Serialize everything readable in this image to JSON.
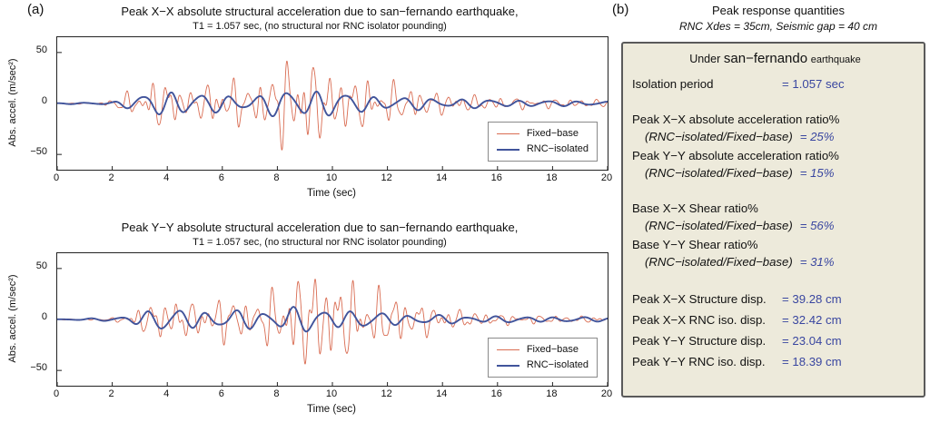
{
  "figure": {
    "panel_a_label": "(a)",
    "panel_b_label": "(b)"
  },
  "chart_data": [
    {
      "type": "line",
      "title": "Peak X−X absolute structural acceleration due to san−fernando earthquake,",
      "subtitle": "T1 = 1.057 sec, (no structural nor RNC isolator pounding)",
      "xlabel": "Time (sec)",
      "ylabel": "Abs. accel. (m/sec²)",
      "xlim": [
        0,
        20
      ],
      "ylim": [
        -65,
        65
      ],
      "xticks": [
        0,
        2,
        4,
        6,
        8,
        10,
        12,
        14,
        16,
        18,
        20
      ],
      "yticks": [
        -50,
        0,
        50
      ],
      "grid": false,
      "legend": [
        "Fixed−base",
        "RNC−isolated"
      ],
      "legend_position": "lower right",
      "series": [
        {
          "name": "Fixed−base",
          "color": "#d96c52",
          "width": 0.9,
          "norm": 1.08,
          "components": [
            {
              "f": 2.05,
              "w": 0.5,
              "p": 0.7
            },
            {
              "f": 3.1,
              "w": 0.3,
              "p": 2.3
            },
            {
              "f": 1.35,
              "w": 0.28,
              "p": 4.9
            },
            {
              "f": 4.35,
              "w": 0.15,
              "p": 1.1
            }
          ],
          "envelope": [
            [
              0,
              0.4
            ],
            [
              1.6,
              0.8
            ],
            [
              2.2,
              8
            ],
            [
              3.0,
              16
            ],
            [
              3.8,
              28
            ],
            [
              4.4,
              20
            ],
            [
              5.0,
              14
            ],
            [
              5.8,
              26
            ],
            [
              6.4,
              28
            ],
            [
              7.0,
              18
            ],
            [
              7.8,
              34
            ],
            [
              8.3,
              50
            ],
            [
              8.8,
              55
            ],
            [
              9.4,
              42
            ],
            [
              10,
              34
            ],
            [
              11,
              27
            ],
            [
              12,
              24
            ],
            [
              13,
              17
            ],
            [
              14,
              12
            ],
            [
              15,
              9
            ],
            [
              16,
              7
            ],
            [
              18,
              5
            ],
            [
              20,
              4
            ]
          ]
        },
        {
          "name": "RNC−isolated",
          "color": "#41549b",
          "width": 1.9,
          "norm": 0.95,
          "components": [
            {
              "f": 0.95,
              "w": 0.75,
              "p": 1.9
            },
            {
              "f": 1.5,
              "w": 0.2,
              "p": 0.4
            },
            {
              "f": 0.55,
              "w": 0.15,
              "p": 3.0
            }
          ],
          "envelope": [
            [
              0,
              0.3
            ],
            [
              2,
              1.5
            ],
            [
              2.8,
              6
            ],
            [
              3.5,
              12
            ],
            [
              4.2,
              13
            ],
            [
              5,
              10
            ],
            [
              5.8,
              8
            ],
            [
              6.5,
              9
            ],
            [
              7.3,
              8
            ],
            [
              8,
              12
            ],
            [
              8.7,
              15
            ],
            [
              9.3,
              14
            ],
            [
              10,
              12
            ],
            [
              10.8,
              9
            ],
            [
              11.8,
              7
            ],
            [
              12.8,
              6
            ],
            [
              14,
              5
            ],
            [
              15.5,
              4
            ],
            [
              17,
              3
            ],
            [
              20,
              2
            ]
          ]
        }
      ]
    },
    {
      "type": "line",
      "title": "Peak Y−Y absolute structural acceleration due to san−fernando earthquake,",
      "subtitle": "T1 = 1.057 sec, (no structural nor RNC isolator pounding)",
      "xlabel": "Time (sec)",
      "ylabel": "Abs. accel. (m/sec²)",
      "xlim": [
        0,
        20
      ],
      "ylim": [
        -65,
        65
      ],
      "xticks": [
        0,
        2,
        4,
        6,
        8,
        10,
        12,
        14,
        16,
        18,
        20
      ],
      "yticks": [
        -50,
        0,
        50
      ],
      "grid": false,
      "legend": [
        "Fixed−base",
        "RNC−isolated"
      ],
      "legend_position": "lower right",
      "series": [
        {
          "name": "Fixed−base",
          "color": "#d96c52",
          "width": 0.9,
          "norm": 1.08,
          "components": [
            {
              "f": 2.05,
              "w": 0.5,
              "p": 1.4
            },
            {
              "f": 3.1,
              "w": 0.3,
              "p": 0.2
            },
            {
              "f": 1.35,
              "w": 0.28,
              "p": 3.6
            },
            {
              "f": 4.35,
              "w": 0.15,
              "p": 2.8
            }
          ],
          "envelope": [
            [
              0,
              0.4
            ],
            [
              2,
              1.5
            ],
            [
              2.8,
              10
            ],
            [
              3.6,
              20
            ],
            [
              4.3,
              24
            ],
            [
              5,
              17
            ],
            [
              5.8,
              26
            ],
            [
              6.5,
              23
            ],
            [
              7.1,
              19
            ],
            [
              8,
              36
            ],
            [
              8.8,
              48
            ],
            [
              9.5,
              57
            ],
            [
              10,
              46
            ],
            [
              10.8,
              40
            ],
            [
              11.6,
              33
            ],
            [
              12.4,
              27
            ],
            [
              13,
              20
            ],
            [
              14,
              13
            ],
            [
              15,
              9
            ],
            [
              16,
              6
            ],
            [
              18,
              4
            ],
            [
              20,
              3
            ]
          ]
        },
        {
          "name": "RNC−isolated",
          "color": "#41549b",
          "width": 1.9,
          "norm": 0.95,
          "components": [
            {
              "f": 0.95,
              "w": 0.75,
              "p": 0.6
            },
            {
              "f": 1.5,
              "w": 0.2,
              "p": 2.1
            },
            {
              "f": 0.55,
              "w": 0.15,
              "p": 4.4
            }
          ],
          "envelope": [
            [
              0,
              0.3
            ],
            [
              2,
              1.5
            ],
            [
              3,
              7
            ],
            [
              4,
              11
            ],
            [
              5,
              9
            ],
            [
              6,
              8
            ],
            [
              7,
              9
            ],
            [
              8,
              11
            ],
            [
              9,
              12
            ],
            [
              10,
              10
            ],
            [
              11,
              8
            ],
            [
              12,
              6
            ],
            [
              13,
              5
            ],
            [
              14,
              4
            ],
            [
              16,
              3
            ],
            [
              18,
              2.5
            ],
            [
              20,
              2
            ]
          ]
        }
      ]
    }
  ],
  "results": {
    "title": "Peak response quantities",
    "subtitle": "RNC Xdes = 35cm, Seismic gap = 40 cm",
    "header_prefix": "Under",
    "header_event": "san−fernando",
    "header_suffix": "earthquake",
    "rows": [
      {
        "label": "Isolation period",
        "value": "= 1.057 sec"
      },
      {
        "label": "Peak X−X absolute acceleration ratio%",
        "sublabel": "(RNC−isolated/Fixed−base)",
        "value": "= 25%"
      },
      {
        "label": "Peak Y−Y absolute acceleration ratio%",
        "sublabel": "(RNC−isolated/Fixed−base)",
        "value": "= 15%"
      },
      {
        "label": "Base X−X Shear ratio%",
        "sublabel": "(RNC−isolated/Fixed−base)",
        "value": "= 56%"
      },
      {
        "label": "Base Y−Y Shear ratio%",
        "sublabel": "(RNC−isolated/Fixed−base)",
        "value": "= 31%"
      },
      {
        "label": "Peak X−X Structure disp.",
        "value": "= 39.28 cm"
      },
      {
        "label": "Peak X−X RNC iso. disp.",
        "value": "= 32.42 cm"
      },
      {
        "label": "Peak Y−Y Structure disp.",
        "value": "= 23.04 cm"
      },
      {
        "label": "Peak Y−Y RNC iso. disp.",
        "value": "= 18.39 cm"
      }
    ]
  }
}
